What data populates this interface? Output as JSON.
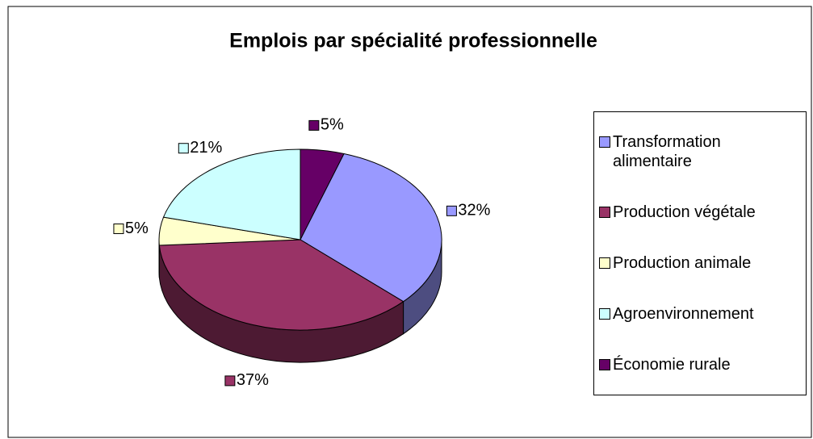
{
  "chart_data": {
    "type": "pie",
    "title": "Emplois par spécialité professionnelle",
    "categories": [
      "Transformation alimentaire",
      "Production végétale",
      "Production animale",
      "Agroenvironnement",
      "Économie rurale"
    ],
    "values": [
      32,
      37,
      5,
      21,
      5
    ],
    "value_labels": [
      "32%",
      "37%",
      "5%",
      "21%",
      "5%"
    ],
    "colors": [
      "#9999ff",
      "#993366",
      "#ffffcc",
      "#ccffff",
      "#660066"
    ],
    "legend": "right"
  }
}
